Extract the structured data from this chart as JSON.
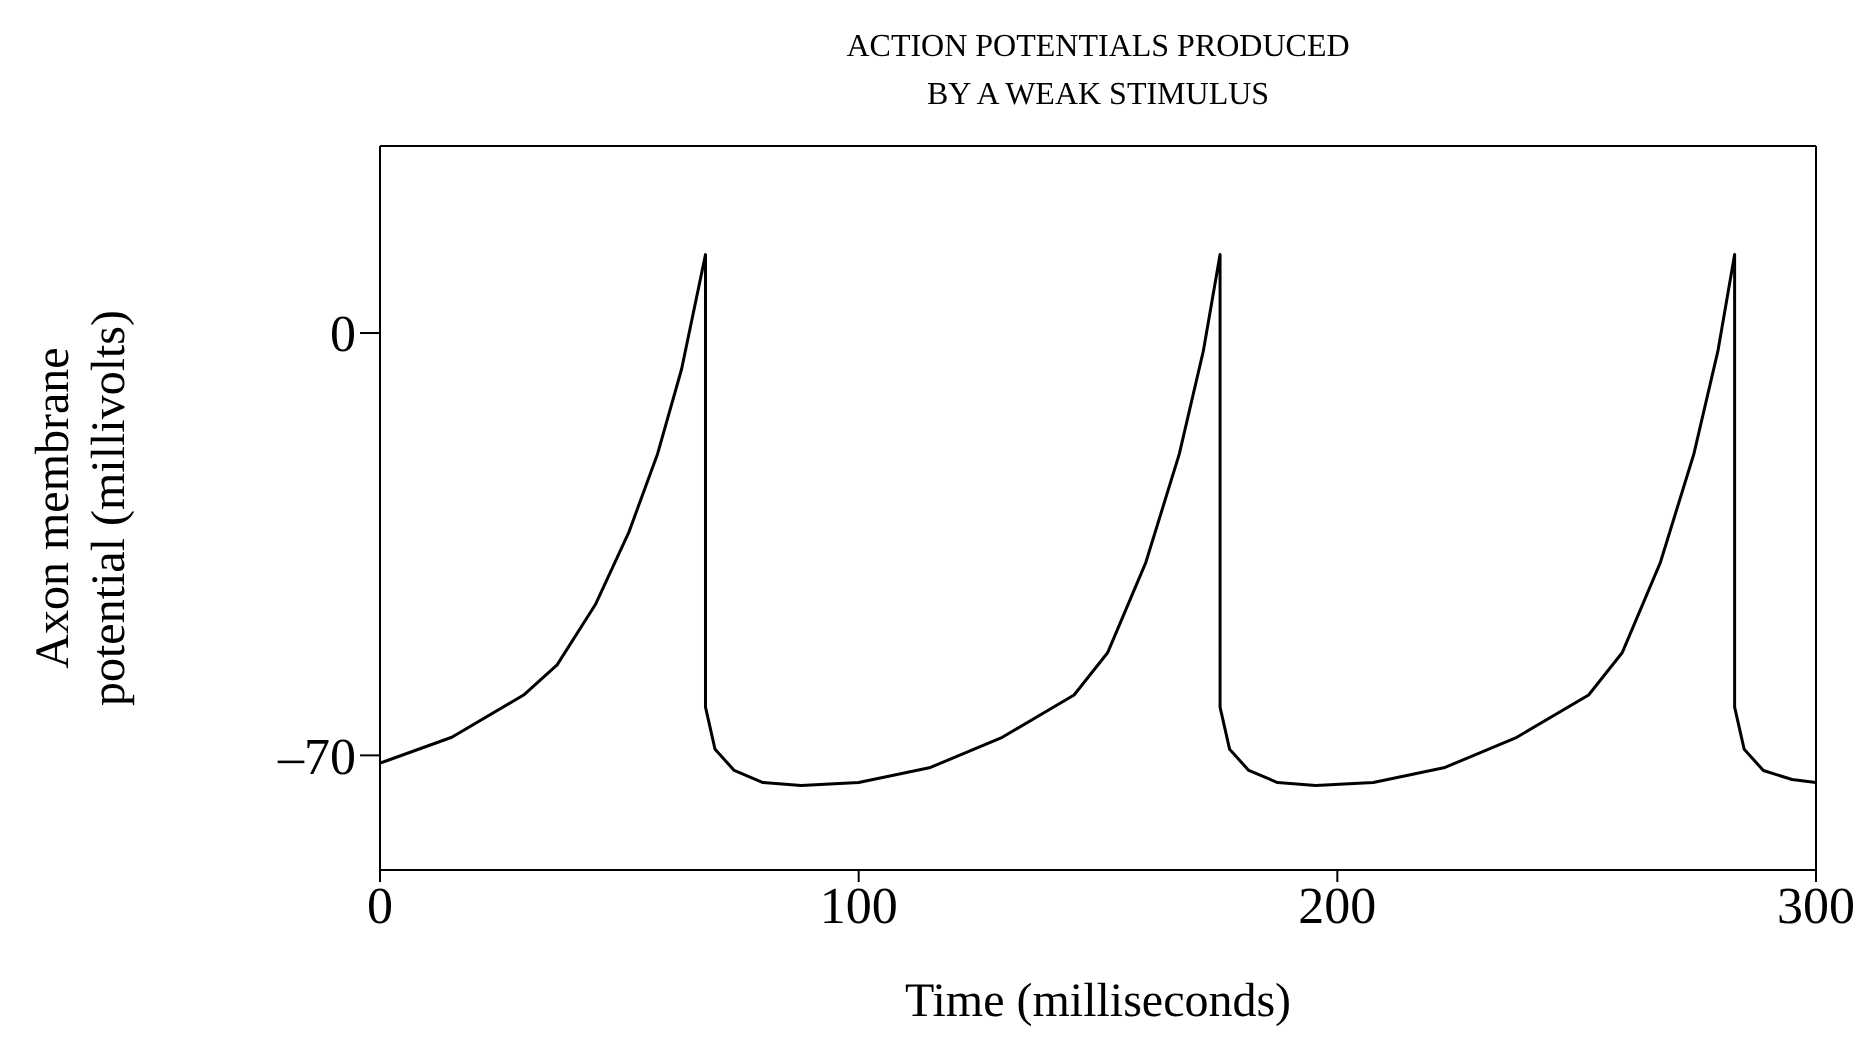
{
  "chart_data": {
    "type": "line",
    "title": "ACTION POTENTIALS PRODUCED BY A WEAK STIMULUS",
    "xlabel": "Time (milliseconds)",
    "ylabel": "Axon membrane potential (millivolts)",
    "x": [
      0,
      15,
      30,
      37,
      45,
      52,
      58,
      63,
      68,
      68,
      70,
      74,
      80,
      88,
      100,
      115,
      130,
      145,
      152,
      160,
      167,
      172,
      175.5,
      175.5,
      177.5,
      181.5,
      187.5,
      195.5,
      207.5,
      222.5,
      237.5,
      252.5,
      259.5,
      267.5,
      274.5,
      279.5,
      283,
      283,
      285,
      289,
      295,
      300
    ],
    "series": [
      {
        "color": "#000000",
        "values": [
          -71.3,
          -67,
          -60,
          -55,
          -45,
          -33,
          -20,
          -6,
          13,
          -62,
          -69,
          -72.5,
          -74.5,
          -75,
          -74.5,
          -72,
          -67,
          -60,
          -53,
          -38,
          -20,
          -3,
          13,
          -62,
          -69,
          -72.5,
          -74.5,
          -75,
          -74.5,
          -72,
          -67,
          -60,
          -53,
          -38,
          -20,
          -3,
          13,
          -62,
          -69,
          -72.5,
          -74,
          -74.5
        ]
      }
    ],
    "xlim": [
      0,
      300
    ],
    "xticks": [
      0,
      100,
      200,
      300
    ],
    "ylim": [
      -89,
      31
    ],
    "yticks": [
      0,
      {
        "value": -70,
        "label": "–70"
      }
    ],
    "grid": false,
    "legend": false,
    "marker": "none",
    "line_style": "solid"
  }
}
